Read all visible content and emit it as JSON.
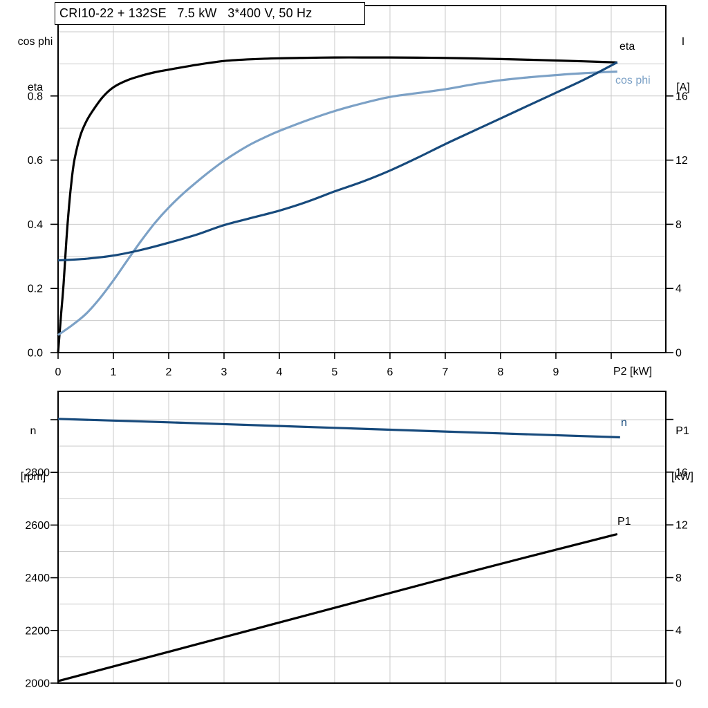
{
  "colors": {
    "black": "#000000",
    "dark_blue": "#174a7c",
    "light_blue": "#7ca1c6",
    "grid": "#cacaca",
    "frame": "#000000"
  },
  "chart_data": [
    {
      "type": "line",
      "name": "efficiency-cosphi-current-vs-shaft-power",
      "title": "CRI10-22 + 132SE   7.5 kW   3*400 V, 50 Hz",
      "x": {
        "label": "P2 [kW]",
        "range": [
          0,
          10.99
        ],
        "gridlines": [
          1,
          2,
          3,
          4,
          5,
          6,
          7,
          8,
          9,
          10
        ],
        "ticks": [
          {
            "v": 0,
            "label": "0"
          },
          {
            "v": 1,
            "label": "1"
          },
          {
            "v": 2,
            "label": "2"
          },
          {
            "v": 3,
            "label": "3"
          },
          {
            "v": 4,
            "label": "4"
          },
          {
            "v": 5,
            "label": "5"
          },
          {
            "v": 6,
            "label": "6"
          },
          {
            "v": 7,
            "label": "7"
          },
          {
            "v": 8,
            "label": "8"
          },
          {
            "v": 9,
            "label": "9"
          },
          {
            "v": 10,
            "label": ""
          }
        ]
      },
      "y_left": {
        "title_lines": [
          "cos phi",
          "eta"
        ],
        "range": [
          0,
          1.082
        ],
        "gridlines": [
          0.1,
          0.2,
          0.3,
          0.4,
          0.5,
          0.6,
          0.7,
          0.8,
          0.9,
          1.0
        ],
        "ticks": [
          {
            "v": 0,
            "label": "0.0"
          },
          {
            "v": 0.2,
            "label": "0.2"
          },
          {
            "v": 0.4,
            "label": "0.4"
          },
          {
            "v": 0.6,
            "label": "0.6"
          },
          {
            "v": 0.8,
            "label": "0.8"
          }
        ]
      },
      "y_right": {
        "title_lines": [
          "I",
          "[A]"
        ],
        "range": [
          0,
          21.6
        ],
        "ticks": [
          {
            "v": 0,
            "label": "0"
          },
          {
            "v": 4,
            "label": "4"
          },
          {
            "v": 8,
            "label": "8"
          },
          {
            "v": 12,
            "label": "12"
          },
          {
            "v": 16,
            "label": "16"
          }
        ]
      },
      "series": [
        {
          "name": "eta",
          "label": "eta",
          "axis": "left",
          "color_key": "black",
          "points": [
            [
              0,
              0
            ],
            [
              0.05,
              0.11
            ],
            [
              0.1,
              0.215
            ],
            [
              0.15,
              0.35
            ],
            [
              0.2,
              0.46
            ],
            [
              0.25,
              0.545
            ],
            [
              0.3,
              0.605
            ],
            [
              0.4,
              0.675
            ],
            [
              0.5,
              0.717
            ],
            [
              0.6,
              0.747
            ],
            [
              0.8,
              0.795
            ],
            [
              1,
              0.827
            ],
            [
              1.25,
              0.849
            ],
            [
              1.5,
              0.863
            ],
            [
              1.75,
              0.874
            ],
            [
              2,
              0.882
            ],
            [
              2.5,
              0.897
            ],
            [
              3,
              0.909
            ],
            [
              3.5,
              0.9145
            ],
            [
              4,
              0.9175
            ],
            [
              4.5,
              0.919
            ],
            [
              5,
              0.92
            ],
            [
              5.5,
              0.92
            ],
            [
              6,
              0.92
            ],
            [
              6.5,
              0.9195
            ],
            [
              7,
              0.9185
            ],
            [
              7.5,
              0.917
            ],
            [
              8,
              0.915
            ],
            [
              8.5,
              0.913
            ],
            [
              9,
              0.9105
            ],
            [
              9.5,
              0.908
            ],
            [
              10.11,
              0.9045
            ]
          ]
        },
        {
          "name": "cos phi",
          "label": "cos phi",
          "axis": "left",
          "color_key": "light_blue",
          "points": [
            [
              0,
              0.055
            ],
            [
              0.25,
              0.085
            ],
            [
              0.5,
              0.12
            ],
            [
              0.75,
              0.168
            ],
            [
              1,
              0.225
            ],
            [
              1.25,
              0.287
            ],
            [
              1.5,
              0.348
            ],
            [
              1.75,
              0.404
            ],
            [
              2,
              0.452
            ],
            [
              2.25,
              0.494
            ],
            [
              2.5,
              0.531
            ],
            [
              2.75,
              0.566
            ],
            [
              3,
              0.598
            ],
            [
              3.25,
              0.626
            ],
            [
              3.5,
              0.651
            ],
            [
              3.75,
              0.672
            ],
            [
              4,
              0.691
            ],
            [
              4.5,
              0.724
            ],
            [
              5,
              0.753
            ],
            [
              5.5,
              0.777
            ],
            [
              6,
              0.797
            ],
            [
              6.5,
              0.809
            ],
            [
              7,
              0.821
            ],
            [
              7.5,
              0.836
            ],
            [
              8,
              0.849
            ],
            [
              8.5,
              0.858
            ],
            [
              9,
              0.865
            ],
            [
              9.5,
              0.871
            ],
            [
              10.11,
              0.876
            ]
          ]
        },
        {
          "name": "I",
          "label": "",
          "axis": "right",
          "color_key": "dark_blue",
          "points": [
            [
              0,
              5.75
            ],
            [
              0.5,
              5.85
            ],
            [
              1,
              6.05
            ],
            [
              1.5,
              6.4
            ],
            [
              2,
              6.85
            ],
            [
              2.5,
              7.35
            ],
            [
              3,
              7.95
            ],
            [
              3.5,
              8.4
            ],
            [
              4,
              8.85
            ],
            [
              4.5,
              9.4
            ],
            [
              5,
              10.05
            ],
            [
              5.5,
              10.65
            ],
            [
              6,
              11.35
            ],
            [
              6.5,
              12.15
            ],
            [
              7,
              13.0
            ],
            [
              7.5,
              13.8
            ],
            [
              8,
              14.6
            ],
            [
              8.5,
              15.4
            ],
            [
              9,
              16.2
            ],
            [
              9.5,
              17.0
            ],
            [
              10.11,
              18.1
            ]
          ]
        }
      ]
    },
    {
      "type": "line",
      "name": "speed-and-input-power-vs-shaft-power",
      "title": "",
      "x": {
        "label": "",
        "range": [
          0,
          10.99
        ],
        "gridlines": [
          1,
          2,
          3,
          4,
          5,
          6,
          7,
          8,
          9,
          10
        ],
        "ticks": []
      },
      "y_left": {
        "title_lines": [
          "n",
          "[rpm]"
        ],
        "range": [
          2000,
          3108
        ],
        "gridlines": [
          2100,
          2200,
          2300,
          2400,
          2500,
          2600,
          2700,
          2800,
          2900,
          3000
        ],
        "ticks": [
          {
            "v": 2000,
            "label": "2000"
          },
          {
            "v": 2200,
            "label": "2200"
          },
          {
            "v": 2400,
            "label": "2400"
          },
          {
            "v": 2600,
            "label": "2600"
          },
          {
            "v": 2800,
            "label": "2800"
          },
          {
            "v": 3000,
            "label": ""
          }
        ]
      },
      "y_right": {
        "title_lines": [
          "P1",
          "[kW]"
        ],
        "range": [
          0,
          22.1
        ],
        "ticks": [
          {
            "v": 0,
            "label": "0"
          },
          {
            "v": 4,
            "label": "4"
          },
          {
            "v": 8,
            "label": "8"
          },
          {
            "v": 12,
            "label": "12"
          },
          {
            "v": 16,
            "label": "16"
          },
          {
            "v": 20,
            "label": ""
          }
        ]
      },
      "series": [
        {
          "name": "n",
          "label": "n",
          "axis": "left",
          "color_key": "dark_blue",
          "points": [
            [
              0,
              3003
            ],
            [
              2,
              2990
            ],
            [
              4,
              2976
            ],
            [
              6,
              2962
            ],
            [
              8,
              2948
            ],
            [
              10.16,
              2933
            ]
          ]
        },
        {
          "name": "P1",
          "label": "P1",
          "axis": "right",
          "color_key": "black",
          "points": [
            [
              0,
              0.15
            ],
            [
              2.5,
              2.93
            ],
            [
              5,
              5.71
            ],
            [
              7.5,
              8.5
            ],
            [
              10.11,
              11.3
            ]
          ]
        }
      ]
    }
  ]
}
